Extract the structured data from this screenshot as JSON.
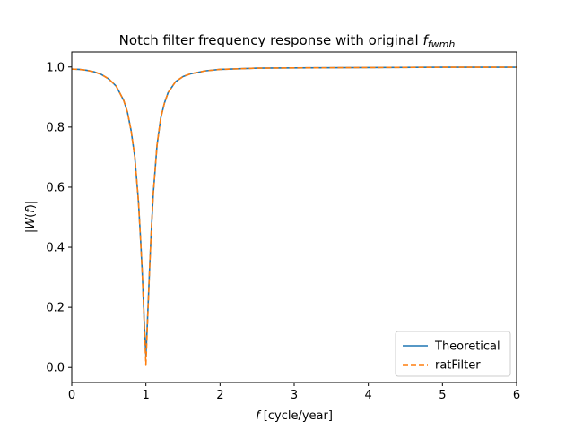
{
  "chart_data": {
    "type": "line",
    "title": "Notch filter frequency response with original",
    "title_math": {
      "base": "f",
      "sub": "fwmh"
    },
    "xlabel_math": "f",
    "xlabel": "[cycle/year]",
    "ylabel": "|W(f)|",
    "xlim": [
      0,
      6
    ],
    "ylim": [
      -0.05,
      1.05
    ],
    "xticks": [
      0,
      1,
      2,
      3,
      4,
      5,
      6
    ],
    "xtick_labels": [
      "0",
      "1",
      "2",
      "3",
      "4",
      "5",
      "6"
    ],
    "yticks": [
      0.0,
      0.2,
      0.4,
      0.6,
      0.8,
      1.0
    ],
    "ytick_labels": [
      "0.0",
      "0.2",
      "0.4",
      "0.6",
      "0.8",
      "1.0"
    ],
    "grid": false,
    "legend_position": "lower right",
    "series": [
      {
        "name": "Theoretical",
        "style": "solid",
        "color": "#1f77b4",
        "x": [
          0,
          0.1,
          0.2,
          0.3,
          0.4,
          0.5,
          0.6,
          0.7,
          0.75,
          0.8,
          0.85,
          0.9,
          0.93,
          0.95,
          0.97,
          0.98,
          0.99,
          1.0,
          1.01,
          1.02,
          1.03,
          1.05,
          1.07,
          1.1,
          1.15,
          1.2,
          1.25,
          1.3,
          1.4,
          1.5,
          1.6,
          1.8,
          2.0,
          2.5,
          3.0,
          4.0,
          5.0,
          6.0
        ],
        "y": [
          0.993,
          0.992,
          0.989,
          0.984,
          0.975,
          0.96,
          0.936,
          0.889,
          0.851,
          0.789,
          0.701,
          0.551,
          0.418,
          0.32,
          0.2,
          0.14,
          0.09,
          0.04,
          0.09,
          0.15,
          0.21,
          0.33,
          0.44,
          0.58,
          0.74,
          0.83,
          0.88,
          0.915,
          0.951,
          0.968,
          0.977,
          0.987,
          0.992,
          0.996,
          0.997,
          0.998,
          0.999,
          0.999
        ]
      },
      {
        "name": "ratFilter",
        "style": "dashed",
        "color": "#ff7f0e",
        "x": [
          0,
          0.1,
          0.2,
          0.3,
          0.4,
          0.5,
          0.6,
          0.7,
          0.75,
          0.8,
          0.85,
          0.9,
          0.93,
          0.95,
          0.97,
          0.98,
          0.99,
          1.0,
          1.01,
          1.02,
          1.03,
          1.05,
          1.07,
          1.1,
          1.15,
          1.2,
          1.25,
          1.3,
          1.4,
          1.5,
          1.6,
          1.8,
          2.0,
          2.5,
          3.0,
          4.0,
          5.0,
          6.0
        ],
        "y": [
          0.993,
          0.992,
          0.989,
          0.984,
          0.975,
          0.96,
          0.936,
          0.889,
          0.851,
          0.789,
          0.701,
          0.551,
          0.418,
          0.32,
          0.2,
          0.13,
          0.07,
          0.01,
          0.07,
          0.14,
          0.2,
          0.33,
          0.44,
          0.58,
          0.74,
          0.83,
          0.88,
          0.915,
          0.951,
          0.968,
          0.977,
          0.987,
          0.992,
          0.996,
          0.997,
          0.998,
          0.999,
          0.999
        ]
      }
    ]
  }
}
